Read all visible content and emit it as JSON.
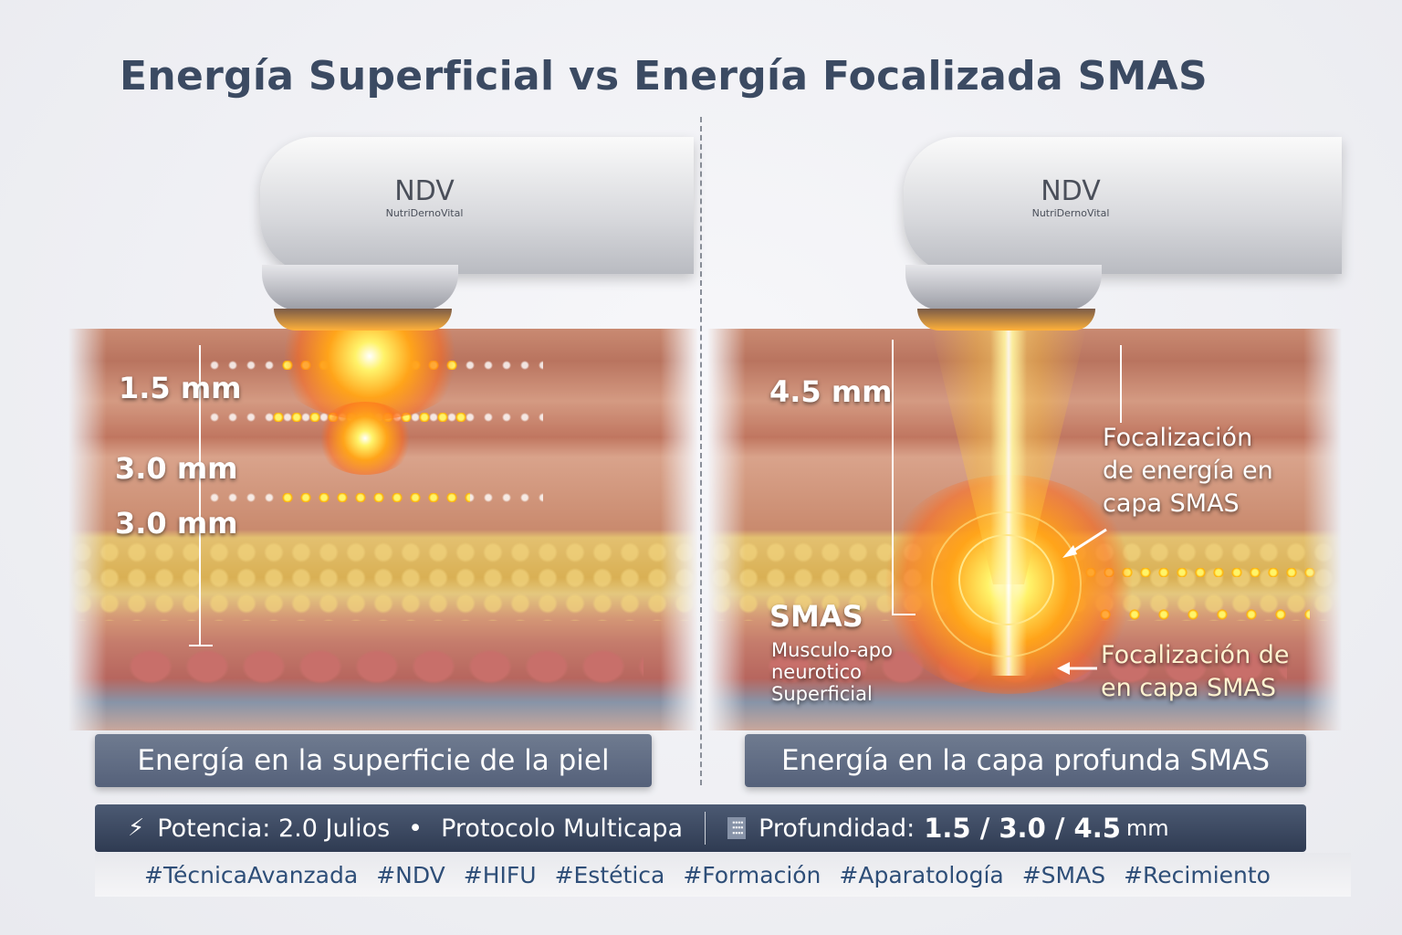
{
  "title": "Energía Superficial vs Energía Focalizada SMAS",
  "left_panel": {
    "brand": "NDV",
    "brand_sub": "NutriDernoVital",
    "depths": [
      "1.5 mm",
      "3.0 mm",
      "3.0 mm"
    ],
    "caption": "Energía en la superficie de la piel"
  },
  "right_panel": {
    "brand": "NDV",
    "brand_sub": "NutriDernoVital",
    "depth": "4.5 mm",
    "smas_label": "SMAS",
    "smas_desc": [
      "Musculo-apo",
      "neurotico",
      "Superficial"
    ],
    "note_top": [
      "Focalización",
      "de energía en",
      "capa SMAS"
    ],
    "note_bottom": [
      "Focalización de",
      "en capa SMAS"
    ],
    "caption": "Energía en la capa profunda SMAS"
  },
  "info_bar": {
    "power_icon": "lightning-icon",
    "power": "Potencia: 2.0 Julios",
    "bullet": "•",
    "protocol": "Protocolo Multicapa",
    "depth_icon": "depth-levels-icon",
    "depth_label": "Profundidad:",
    "depth_value": "1.5 / 3.0 / 4.5",
    "depth_unit": "mm"
  },
  "hashtags": [
    "#TécnicaAvanzada",
    "#NDV",
    "#HIFU",
    "#Estética",
    "#Formación",
    "#Aparatología",
    "#SMAS",
    "#Recimiento"
  ],
  "colors": {
    "title": "#3b4a62",
    "caption_bg": "#5f6b83",
    "info_bg": "#3a4760",
    "hashtag": "#2e4e78",
    "energy": "#ffb000"
  }
}
